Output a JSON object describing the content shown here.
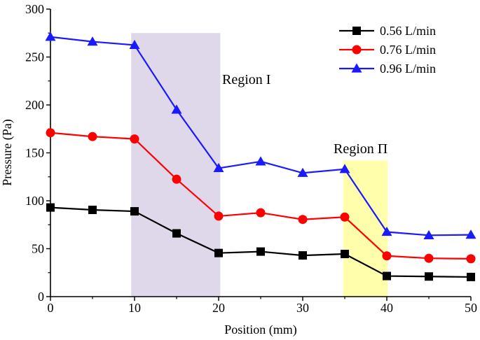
{
  "chart_data": {
    "type": "line",
    "xlabel": "Position (mm)",
    "ylabel": "Pressure (Pa)",
    "xlim": [
      0,
      50
    ],
    "ylim": [
      0,
      300
    ],
    "xticks": [
      0,
      10,
      20,
      30,
      40,
      50
    ],
    "yticks": [
      0,
      50,
      100,
      150,
      200,
      250,
      300
    ],
    "x": [
      0,
      5,
      10,
      15,
      20,
      25,
      30,
      35,
      40,
      45,
      50
    ],
    "series": [
      {
        "name": "0.56 L/min",
        "color": "#000000",
        "marker": "square",
        "values": [
          93,
          90.5,
          89,
          66,
          45.5,
          47,
          43,
          44.5,
          21.5,
          21,
          20.5
        ]
      },
      {
        "name": "0.76 L/min",
        "color": "#ff0000",
        "marker": "circle",
        "values": [
          171,
          167,
          164.5,
          122.5,
          84,
          87.5,
          80.5,
          83,
          42.5,
          40,
          39.5
        ]
      },
      {
        "name": "0.96 L/min",
        "color": "#1a1aff",
        "marker": "triangle",
        "values": [
          271,
          266,
          262.5,
          195,
          134,
          141,
          129,
          133,
          67.5,
          64,
          64.5
        ]
      }
    ],
    "regions": [
      {
        "label": "Region I",
        "x_start": 9.6,
        "x_end": 20.2,
        "y_top": 275,
        "color": "#c9bedc",
        "opacity": 0.6
      },
      {
        "label": "Region Π",
        "x_start": 34.8,
        "x_end": 40.1,
        "y_top": 142,
        "color": "#ffff66",
        "opacity": 0.55
      }
    ],
    "grid": false,
    "legend_position": "top-right"
  }
}
